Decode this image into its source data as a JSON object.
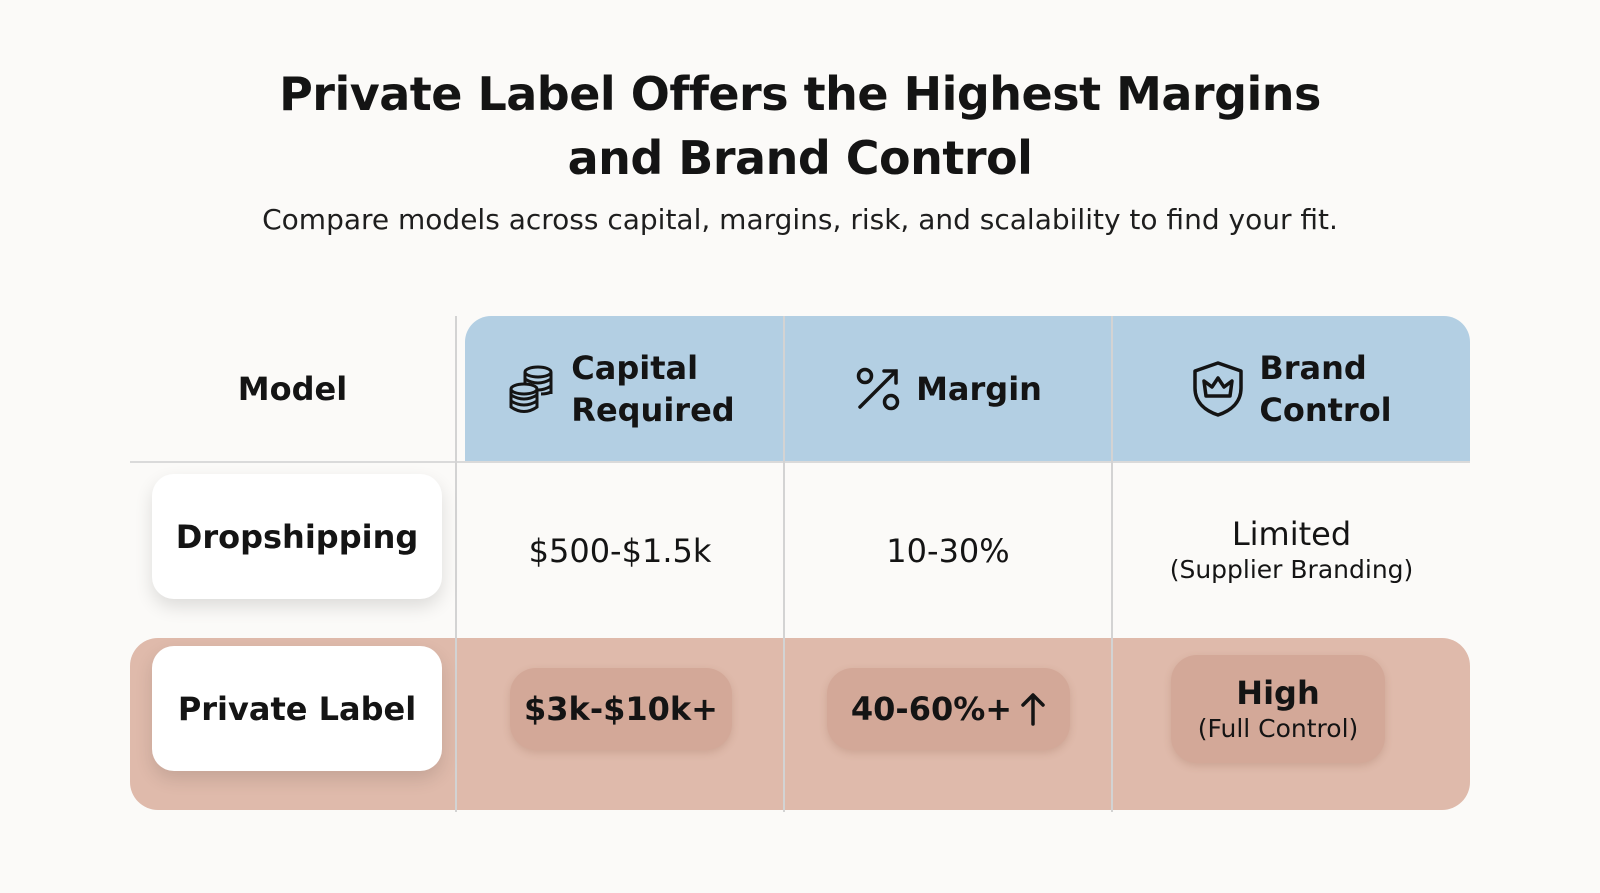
{
  "title_line1": "Private Label Offers the Highest Margins",
  "title_line2": "and Brand Control",
  "subtitle": "Compare models across capital, margins, risk, and scalability to find your fit.",
  "header": {
    "model": "Model",
    "capital_line1": "Capital",
    "capital_line2": "Required",
    "capital_icon": "coins-stack-icon",
    "margin": "Margin",
    "margin_icon": "percent-icon",
    "brand_line1": "Brand",
    "brand_line2": "Control",
    "brand_icon": "shield-crown-icon"
  },
  "rows": [
    {
      "model": "Dropshipping",
      "capital": "$500-$1.5k",
      "margin": "10-30%",
      "brand_main": "Limited",
      "brand_sub": "(Supplier Branding)"
    },
    {
      "model": "Private Label",
      "capital": "$3k-$10k+",
      "margin": "40-60%+",
      "margin_icon": "arrow-up-icon",
      "brand_main": "High",
      "brand_sub": "(Full Control)"
    }
  ],
  "colors": {
    "header_bg": "#b3cfe3",
    "highlight_row_bg": "#dfbaab",
    "badge_bg": "#d3a898"
  }
}
